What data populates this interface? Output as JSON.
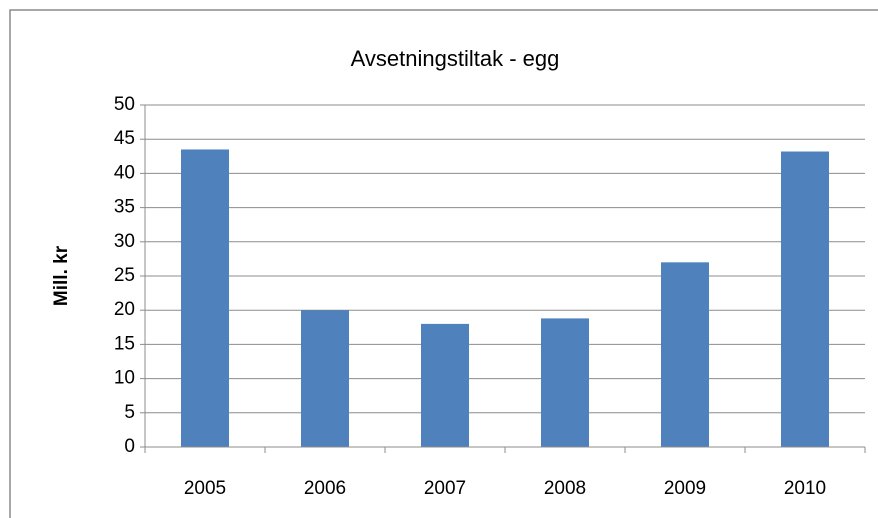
{
  "chart_data": {
    "type": "bar",
    "title": "Avsetningstiltak - egg",
    "y_label": "Mill. kr",
    "categories": [
      "2005",
      "2006",
      "2007",
      "2008",
      "2009",
      "2010"
    ],
    "values": [
      43.5,
      20,
      18,
      18.8,
      27,
      43.2
    ],
    "color": "#4f81bd",
    "ylim": [
      0,
      50
    ],
    "yticks": [
      0,
      5,
      10,
      15,
      20,
      25,
      30,
      35,
      40,
      45,
      50
    ],
    "grid": true
  }
}
